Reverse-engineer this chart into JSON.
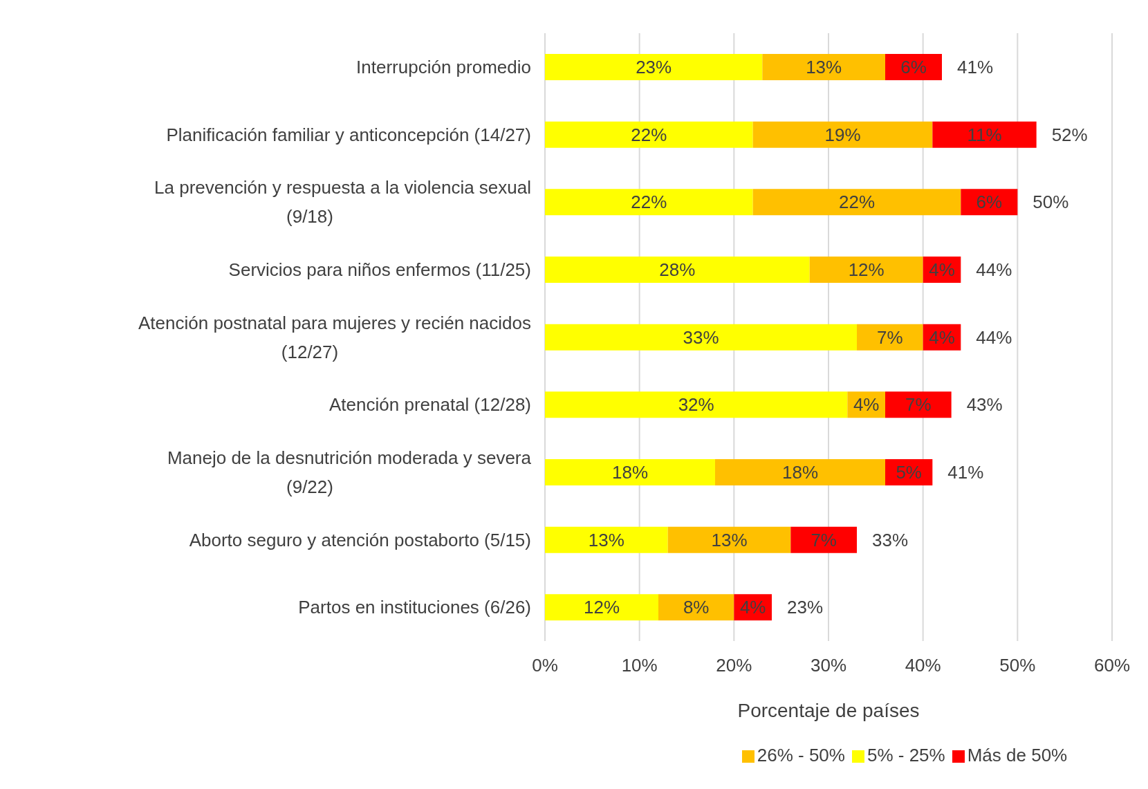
{
  "chart_data": {
    "type": "bar",
    "orientation": "horizontal",
    "stacked": true,
    "xlabel": "Porcentaje de países",
    "categories": [
      "Interrupción promedio",
      "Planificación familiar y anticoncepción (14/27)",
      "La prevención y respuesta a la violencia sexual (9/18)",
      "Servicios para niños enfermos (11/25)",
      "Atención postnatal para mujeres y recién nacidos (12/27)",
      "Atención prenatal (12/28)",
      "Manejo de la desnutrición moderada y severa (9/22)",
      "Aborto seguro y atención postaborto (5/15)",
      "Partos en instituciones (6/26)"
    ],
    "series": [
      {
        "name": "5% - 25%",
        "color": "#ffff00",
        "values": [
          23,
          22,
          22,
          28,
          33,
          32,
          18,
          13,
          12
        ],
        "value_labels": [
          "23%",
          "22%",
          "22%",
          "28%",
          "33%",
          "32%",
          "18%",
          "13%",
          "12%"
        ]
      },
      {
        "name": "26% - 50%",
        "color": "#ffc000",
        "values": [
          13,
          19,
          22,
          12,
          7,
          4,
          18,
          13,
          8
        ],
        "value_labels": [
          "13%",
          "19%",
          "22%",
          "12%",
          "7%",
          "4%",
          "18%",
          "13%",
          "8%"
        ]
      },
      {
        "name": "Más de 50%",
        "color": "#ff0000",
        "values": [
          6,
          11,
          6,
          4,
          4,
          7,
          5,
          7,
          4
        ],
        "value_labels": [
          "6%",
          "11%",
          "6%",
          "4%",
          "4%",
          "7%",
          "5%",
          "7%",
          "4%"
        ]
      }
    ],
    "totals": [
      "41%",
      "52%",
      "50%",
      "44%",
      "44%",
      "43%",
      "41%",
      "33%",
      "23%"
    ],
    "xlim": [
      0,
      60
    ],
    "xticks": [
      {
        "value": 0,
        "label": "0%"
      },
      {
        "value": 10,
        "label": "10%"
      },
      {
        "value": 20,
        "label": "20%"
      },
      {
        "value": 30,
        "label": "30%"
      },
      {
        "value": 40,
        "label": "40%"
      },
      {
        "value": 50,
        "label": "50%"
      },
      {
        "value": 60,
        "label": "60%"
      }
    ],
    "grid": "x",
    "legend": "bottom"
  }
}
